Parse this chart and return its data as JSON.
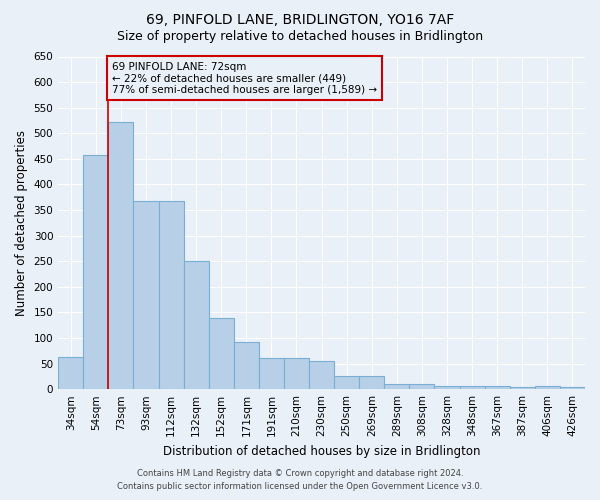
{
  "title": "69, PINFOLD LANE, BRIDLINGTON, YO16 7AF",
  "subtitle": "Size of property relative to detached houses in Bridlington",
  "xlabel": "Distribution of detached houses by size in Bridlington",
  "ylabel": "Number of detached properties",
  "footer_line1": "Contains HM Land Registry data © Crown copyright and database right 2024.",
  "footer_line2": "Contains public sector information licensed under the Open Government Licence v3.0.",
  "categories": [
    "34sqm",
    "54sqm",
    "73sqm",
    "93sqm",
    "112sqm",
    "132sqm",
    "152sqm",
    "171sqm",
    "191sqm",
    "210sqm",
    "230sqm",
    "250sqm",
    "269sqm",
    "289sqm",
    "308sqm",
    "328sqm",
    "348sqm",
    "367sqm",
    "387sqm",
    "406sqm",
    "426sqm"
  ],
  "values": [
    63,
    457,
    523,
    368,
    368,
    250,
    140,
    93,
    60,
    60,
    55,
    26,
    26,
    10,
    11,
    6,
    7,
    6,
    4,
    6,
    5
  ],
  "bar_color": "#b8cfe8",
  "bar_edge_color": "#7aafd4",
  "property_line_label": "69 PINFOLD LANE: 72sqm",
  "annotation_line1": "← 22% of detached houses are smaller (449)",
  "annotation_line2": "77% of semi-detached houses are larger (1,589) →",
  "box_color": "#cc0000",
  "ylim": [
    0,
    650
  ],
  "yticks": [
    0,
    50,
    100,
    150,
    200,
    250,
    300,
    350,
    400,
    450,
    500,
    550,
    600,
    650
  ],
  "bg_color": "#eaf0f8",
  "grid_color": "#ffffff",
  "title_fontsize": 10,
  "subtitle_fontsize": 9,
  "axis_label_fontsize": 8.5,
  "tick_fontsize": 7.5,
  "annotation_fontsize": 7.5,
  "footer_fontsize": 6
}
